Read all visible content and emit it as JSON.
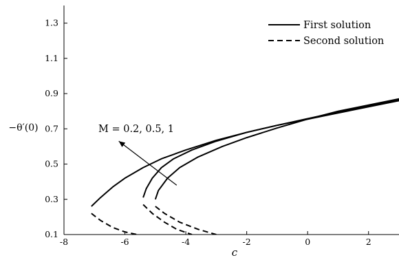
{
  "chart_data": {
    "type": "line",
    "xlabel": "c",
    "ylabel": "−θ′(0)",
    "xlim": [
      -8,
      3
    ],
    "ylim": [
      0.1,
      1.4
    ],
    "xticks": [
      -8,
      -6,
      -4,
      -2,
      0,
      2
    ],
    "xtick_labels": [
      "-8",
      "-6",
      "-4",
      "-2",
      "0",
      "2"
    ],
    "yticks": [
      0.1,
      0.3,
      0.5,
      0.7,
      0.9,
      1.1,
      1.3
    ],
    "ytick_labels": [
      "0.1",
      "0.3",
      "0.5",
      "0.7",
      "0.9",
      "1.1",
      "1.3"
    ],
    "grid": false,
    "legend": {
      "position": "top-right",
      "entries": [
        {
          "label": "First solution",
          "style": "solid"
        },
        {
          "label": "Second solution",
          "style": "dashed"
        }
      ]
    },
    "annotation": {
      "text": "M = 0.2, 0.5, 1",
      "arrow_from": [
        -4.3,
        0.38
      ],
      "arrow_to": [
        -6.2,
        0.63
      ]
    },
    "series": [
      {
        "branch": "first",
        "style": "solid",
        "x": [
          -7.1,
          -6.8,
          -6.4,
          -6.0,
          -5.4,
          -4.8,
          -4.0,
          -3.0,
          -2.0,
          -1.0,
          0.0,
          1.0,
          2.0,
          3.0
        ],
        "y": [
          0.26,
          0.31,
          0.37,
          0.42,
          0.48,
          0.53,
          0.58,
          0.635,
          0.68,
          0.72,
          0.755,
          0.79,
          0.825,
          0.86
        ]
      },
      {
        "branch": "first",
        "style": "solid",
        "x": [
          -5.4,
          -5.3,
          -5.1,
          -4.8,
          -4.4,
          -3.8,
          -3.0,
          -2.0,
          -1.0,
          0.0,
          1.0,
          2.0,
          3.0
        ],
        "y": [
          0.31,
          0.36,
          0.42,
          0.48,
          0.53,
          0.58,
          0.63,
          0.68,
          0.72,
          0.758,
          0.795,
          0.83,
          0.865
        ]
      },
      {
        "branch": "first",
        "style": "solid",
        "x": [
          -5.0,
          -4.9,
          -4.6,
          -4.2,
          -3.6,
          -2.8,
          -2.0,
          -1.0,
          0.0,
          1.0,
          2.0,
          3.0
        ],
        "y": [
          0.3,
          0.35,
          0.42,
          0.48,
          0.54,
          0.6,
          0.65,
          0.705,
          0.755,
          0.8,
          0.835,
          0.87
        ]
      },
      {
        "branch": "second",
        "style": "dashed",
        "x": [
          -7.1,
          -6.8,
          -6.4,
          -6.0,
          -5.6
        ],
        "y": [
          0.22,
          0.18,
          0.14,
          0.115,
          0.1
        ]
      },
      {
        "branch": "second",
        "style": "dashed",
        "x": [
          -5.4,
          -5.1,
          -4.7,
          -4.3,
          -3.8
        ],
        "y": [
          0.27,
          0.22,
          0.17,
          0.13,
          0.1
        ]
      },
      {
        "branch": "second",
        "style": "dashed",
        "x": [
          -5.0,
          -4.7,
          -4.2,
          -3.6,
          -3.0
        ],
        "y": [
          0.26,
          0.22,
          0.17,
          0.13,
          0.1
        ]
      }
    ]
  }
}
